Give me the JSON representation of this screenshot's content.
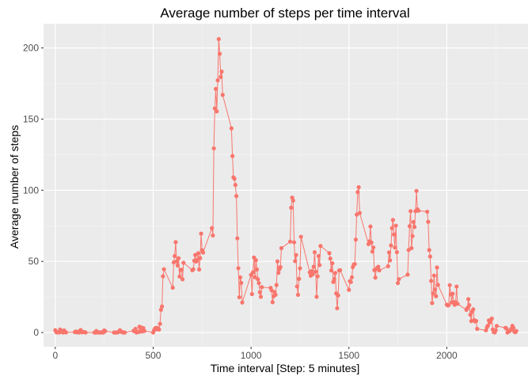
{
  "chart_data": {
    "type": "line",
    "title": "Average number of steps per time interval",
    "xlabel": "Time interval [Step: 5 minutes]",
    "ylabel": "Average number of steps",
    "xlim": [
      -60,
      2415
    ],
    "ylim": [
      -10,
      217
    ],
    "x_ticks": [
      0,
      500,
      1000,
      1500,
      2000
    ],
    "y_ticks": [
      0,
      50,
      100,
      150,
      200
    ],
    "grid": true,
    "legend": "none",
    "colors": {
      "series": "#f8766d",
      "panel_background": "#ebebeb",
      "grid_major": "#ffffff",
      "grid_minor": "#f5f5f5",
      "tick_label": "#4d4d4d"
    },
    "series": [
      {
        "name": "",
        "points": [
          [
            0,
            1.7
          ],
          [
            5,
            0.3
          ],
          [
            10,
            0.1
          ],
          [
            15,
            0.2
          ],
          [
            20,
            0.1
          ],
          [
            25,
            2.1
          ],
          [
            30,
            0.5
          ],
          [
            35,
            0.9
          ],
          [
            40,
            0
          ],
          [
            45,
            1.5
          ],
          [
            50,
            0.3
          ],
          [
            55,
            0.1
          ],
          [
            100,
            0.3
          ],
          [
            105,
            0.7
          ],
          [
            110,
            0.2
          ],
          [
            115,
            0.3
          ],
          [
            120,
            0
          ],
          [
            125,
            1.1
          ],
          [
            130,
            1.8
          ],
          [
            135,
            0.2
          ],
          [
            140,
            0.2
          ],
          [
            145,
            0.4
          ],
          [
            150,
            0.3
          ],
          [
            155,
            0
          ],
          [
            200,
            0
          ],
          [
            205,
            0
          ],
          [
            210,
            1.1
          ],
          [
            215,
            0
          ],
          [
            220,
            0
          ],
          [
            225,
            0.1
          ],
          [
            230,
            0
          ],
          [
            235,
            0.2
          ],
          [
            240,
            0
          ],
          [
            245,
            0
          ],
          [
            250,
            1.5
          ],
          [
            255,
            0.9
          ],
          [
            300,
            0
          ],
          [
            305,
            0
          ],
          [
            310,
            0
          ],
          [
            315,
            0
          ],
          [
            320,
            0.2
          ],
          [
            325,
            0.6
          ],
          [
            330,
            1.6
          ],
          [
            335,
            0.6
          ],
          [
            340,
            0.5
          ],
          [
            345,
            0.1
          ],
          [
            350,
            0
          ],
          [
            355,
            0
          ],
          [
            400,
            1.2
          ],
          [
            405,
            0.9
          ],
          [
            410,
            2.6
          ],
          [
            415,
            0
          ],
          [
            420,
            0.3
          ],
          [
            425,
            0.4
          ],
          [
            430,
            4.1
          ],
          [
            435,
            0.7
          ],
          [
            440,
            3.5
          ],
          [
            445,
            0.8
          ],
          [
            450,
            3.1
          ],
          [
            455,
            1.1
          ],
          [
            500,
            0
          ],
          [
            505,
            1.6
          ],
          [
            510,
            3
          ],
          [
            515,
            2.2
          ],
          [
            520,
            3.3
          ],
          [
            525,
            2.9
          ],
          [
            530,
            2.1
          ],
          [
            535,
            6.1
          ],
          [
            540,
            16
          ],
          [
            545,
            18.3
          ],
          [
            550,
            39.5
          ],
          [
            555,
            44.5
          ],
          [
            600,
            31.5
          ],
          [
            605,
            49.3
          ],
          [
            610,
            53.8
          ],
          [
            615,
            63.5
          ],
          [
            620,
            50
          ],
          [
            625,
            47.1
          ],
          [
            630,
            52.2
          ],
          [
            635,
            39.3
          ],
          [
            640,
            44
          ],
          [
            645,
            44.2
          ],
          [
            650,
            37.4
          ],
          [
            655,
            49
          ],
          [
            700,
            43.8
          ],
          [
            705,
            44.4
          ],
          [
            710,
            50.5
          ],
          [
            715,
            54.5
          ],
          [
            720,
            49.9
          ],
          [
            725,
            51
          ],
          [
            730,
            55.7
          ],
          [
            735,
            44.3
          ],
          [
            740,
            52.3
          ],
          [
            745,
            69.5
          ],
          [
            750,
            57.8
          ],
          [
            755,
            56.2
          ],
          [
            800,
            73.4
          ],
          [
            805,
            68.2
          ],
          [
            810,
            129.4
          ],
          [
            815,
            157.5
          ],
          [
            820,
            171.2
          ],
          [
            825,
            155.4
          ],
          [
            830,
            177.3
          ],
          [
            835,
            206.2
          ],
          [
            840,
            195.9
          ],
          [
            845,
            179.6
          ],
          [
            850,
            183.4
          ],
          [
            855,
            167
          ],
          [
            900,
            143.5
          ],
          [
            905,
            124
          ],
          [
            910,
            109.1
          ],
          [
            915,
            108.1
          ],
          [
            920,
            103.7
          ],
          [
            925,
            95.9
          ],
          [
            930,
            66.2
          ],
          [
            935,
            45.2
          ],
          [
            940,
            24.8
          ],
          [
            945,
            38.8
          ],
          [
            950,
            34.9
          ],
          [
            955,
            21.1
          ],
          [
            1000,
            40.6
          ],
          [
            1005,
            27
          ],
          [
            1010,
            42.4
          ],
          [
            1015,
            52.7
          ],
          [
            1020,
            38.9
          ],
          [
            1025,
            50.8
          ],
          [
            1030,
            44.3
          ],
          [
            1035,
            37.4
          ],
          [
            1040,
            34.7
          ],
          [
            1045,
            28.3
          ],
          [
            1050,
            25.1
          ],
          [
            1055,
            31.9
          ],
          [
            1100,
            31.4
          ],
          [
            1105,
            29.7
          ],
          [
            1110,
            21.3
          ],
          [
            1115,
            25.5
          ],
          [
            1120,
            28.4
          ],
          [
            1125,
            26.5
          ],
          [
            1130,
            33.4
          ],
          [
            1135,
            50
          ],
          [
            1140,
            42
          ],
          [
            1145,
            44.6
          ],
          [
            1150,
            46
          ],
          [
            1155,
            59.3
          ],
          [
            1200,
            63.9
          ],
          [
            1205,
            87.7
          ],
          [
            1210,
            94.8
          ],
          [
            1215,
            92.8
          ],
          [
            1220,
            63.4
          ],
          [
            1225,
            50.2
          ],
          [
            1230,
            54.5
          ],
          [
            1235,
            32.4
          ],
          [
            1240,
            26.5
          ],
          [
            1245,
            37.7
          ],
          [
            1250,
            45.1
          ],
          [
            1255,
            67.3
          ],
          [
            1300,
            42.3
          ],
          [
            1305,
            39.9
          ],
          [
            1310,
            43.3
          ],
          [
            1315,
            40.98
          ],
          [
            1320,
            46.2
          ],
          [
            1325,
            56.4
          ],
          [
            1330,
            42.8
          ],
          [
            1335,
            25.1
          ],
          [
            1340,
            39.5
          ],
          [
            1345,
            53.8
          ],
          [
            1350,
            47.4
          ],
          [
            1355,
            60.8
          ],
          [
            1400,
            55.8
          ],
          [
            1405,
            51.96
          ],
          [
            1410,
            43.6
          ],
          [
            1415,
            48.7
          ],
          [
            1420,
            35.5
          ],
          [
            1425,
            37.5
          ],
          [
            1430,
            41.8
          ],
          [
            1435,
            27.5
          ],
          [
            1440,
            17.1
          ],
          [
            1445,
            26.1
          ],
          [
            1450,
            43.6
          ],
          [
            1455,
            43.8
          ],
          [
            1500,
            30
          ],
          [
            1505,
            36.1
          ],
          [
            1510,
            35.5
          ],
          [
            1515,
            38.8
          ],
          [
            1520,
            45.96
          ],
          [
            1525,
            47.8
          ],
          [
            1530,
            48.1
          ],
          [
            1535,
            65.3
          ],
          [
            1540,
            82.9
          ],
          [
            1545,
            98.7
          ],
          [
            1550,
            102.1
          ],
          [
            1555,
            84
          ],
          [
            1600,
            62.1
          ],
          [
            1605,
            64.1
          ],
          [
            1610,
            74.5
          ],
          [
            1615,
            63.2
          ],
          [
            1620,
            56.9
          ],
          [
            1625,
            59.8
          ],
          [
            1630,
            43.9
          ],
          [
            1635,
            38.6
          ],
          [
            1640,
            44.7
          ],
          [
            1645,
            45.5
          ],
          [
            1650,
            46.2
          ],
          [
            1655,
            43.7
          ],
          [
            1700,
            46.6
          ],
          [
            1705,
            56.3
          ],
          [
            1710,
            50.7
          ],
          [
            1715,
            61.2
          ],
          [
            1720,
            73.4
          ],
          [
            1725,
            79.1
          ],
          [
            1730,
            68.9
          ],
          [
            1735,
            59.7
          ],
          [
            1740,
            75.1
          ],
          [
            1745,
            56.5
          ],
          [
            1750,
            34.8
          ],
          [
            1755,
            37.5
          ],
          [
            1800,
            40.7
          ],
          [
            1805,
            58
          ],
          [
            1810,
            74.7
          ],
          [
            1815,
            85.3
          ],
          [
            1820,
            59.3
          ],
          [
            1825,
            67.8
          ],
          [
            1830,
            77.7
          ],
          [
            1835,
            74.2
          ],
          [
            1840,
            85.3
          ],
          [
            1845,
            99.5
          ],
          [
            1850,
            86.6
          ],
          [
            1855,
            85.6
          ],
          [
            1900,
            84.9
          ],
          [
            1905,
            77.8
          ],
          [
            1910,
            58
          ],
          [
            1915,
            53.4
          ],
          [
            1920,
            36.3
          ],
          [
            1925,
            20.7
          ],
          [
            1930,
            27.4
          ],
          [
            1935,
            40
          ],
          [
            1940,
            30.2
          ],
          [
            1945,
            25.5
          ],
          [
            1950,
            45.7
          ],
          [
            1955,
            33.5
          ],
          [
            2000,
            19.6
          ],
          [
            2005,
            19
          ],
          [
            2010,
            19.3
          ],
          [
            2015,
            33.3
          ],
          [
            2020,
            26.8
          ],
          [
            2025,
            21.2
          ],
          [
            2030,
            27.3
          ],
          [
            2035,
            21.3
          ],
          [
            2040,
            19.5
          ],
          [
            2045,
            21.3
          ],
          [
            2050,
            32.3
          ],
          [
            2055,
            20.2
          ],
          [
            2100,
            15.9
          ],
          [
            2105,
            17.2
          ],
          [
            2110,
            23.5
          ],
          [
            2115,
            19.2
          ],
          [
            2120,
            12.5
          ],
          [
            2125,
            8
          ],
          [
            2130,
            14.7
          ],
          [
            2135,
            16.3
          ],
          [
            2140,
            8.7
          ],
          [
            2145,
            7.8
          ],
          [
            2150,
            8.1
          ],
          [
            2155,
            2.6
          ],
          [
            2200,
            1.5
          ],
          [
            2205,
            3.7
          ],
          [
            2210,
            4.8
          ],
          [
            2215,
            8.5
          ],
          [
            2220,
            7.1
          ],
          [
            2225,
            8.7
          ],
          [
            2230,
            9.8
          ],
          [
            2235,
            2.2
          ],
          [
            2240,
            0.3
          ],
          [
            2245,
            0.1
          ],
          [
            2250,
            1.6
          ],
          [
            2255,
            4.6
          ],
          [
            2300,
            3.3
          ],
          [
            2305,
            2.8
          ],
          [
            2310,
            0
          ],
          [
            2315,
            0.8
          ],
          [
            2320,
            1
          ],
          [
            2325,
            1.6
          ],
          [
            2330,
            2.6
          ],
          [
            2335,
            4.7
          ],
          [
            2340,
            3.3
          ],
          [
            2345,
            0.6
          ],
          [
            2350,
            0.2
          ],
          [
            2355,
            1.1
          ]
        ]
      }
    ]
  }
}
